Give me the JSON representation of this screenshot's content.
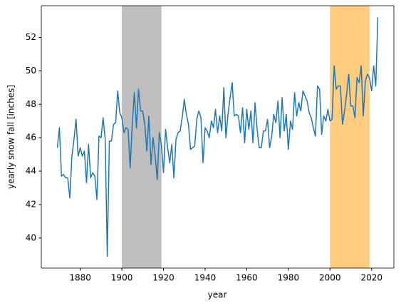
{
  "chart_data": {
    "type": "line",
    "xlabel": "year",
    "ylabel": "yearly snow fall [inches]",
    "x": [
      1869,
      1870,
      1871,
      1872,
      1873,
      1874,
      1875,
      1876,
      1877,
      1878,
      1879,
      1880,
      1881,
      1882,
      1883,
      1884,
      1885,
      1886,
      1887,
      1888,
      1889,
      1890,
      1891,
      1892,
      1893,
      1894,
      1895,
      1896,
      1897,
      1898,
      1899,
      1900,
      1901,
      1902,
      1903,
      1904,
      1905,
      1906,
      1907,
      1908,
      1909,
      1910,
      1911,
      1912,
      1913,
      1914,
      1915,
      1916,
      1917,
      1918,
      1919,
      1920,
      1921,
      1922,
      1923,
      1924,
      1925,
      1926,
      1927,
      1928,
      1929,
      1930,
      1931,
      1932,
      1933,
      1934,
      1935,
      1936,
      1937,
      1938,
      1939,
      1940,
      1941,
      1942,
      1943,
      1944,
      1945,
      1946,
      1947,
      1948,
      1949,
      1950,
      1951,
      1952,
      1953,
      1954,
      1955,
      1956,
      1957,
      1958,
      1959,
      1960,
      1961,
      1962,
      1963,
      1964,
      1965,
      1966,
      1967,
      1968,
      1969,
      1970,
      1971,
      1972,
      1973,
      1974,
      1975,
      1976,
      1977,
      1978,
      1979,
      1980,
      1981,
      1982,
      1983,
      1984,
      1985,
      1986,
      1987,
      1988,
      1989,
      1990,
      1991,
      1992,
      1993,
      1994,
      1995,
      1996,
      1997,
      1998,
      1999,
      2000,
      2001,
      2002,
      2003,
      2004,
      2005,
      2006,
      2007,
      2008,
      2009,
      2010,
      2011,
      2012,
      2013,
      2014,
      2015,
      2016,
      2017,
      2018,
      2019,
      2020,
      2021,
      2022,
      2023
    ],
    "series": [
      {
        "color": "#1f77b4",
        "values": [
          45.4,
          46.6,
          43.7,
          43.8,
          43.6,
          43.6,
          42.4,
          44.9,
          45.9,
          47.1,
          44.9,
          45.4,
          44.9,
          45.2,
          43.3,
          45.6,
          43.6,
          43.9,
          43.7,
          42.3,
          46.1,
          46.0,
          47.2,
          45.9,
          38.9,
          45.8,
          45.8,
          46.8,
          46.9,
          48.8,
          47.5,
          47.2,
          46.3,
          46.6,
          46.5,
          44.2,
          46.8,
          48.7,
          46.6,
          48.9,
          47.6,
          47.6,
          46.8,
          45.2,
          47.3,
          44.4,
          46.0,
          44.9,
          43.5,
          46.3,
          45.6,
          43.9,
          46.5,
          45.4,
          44.5,
          45.6,
          43.6,
          45.9,
          46.3,
          46.4,
          47.2,
          48.3,
          47.4,
          46.8,
          45.3,
          45.4,
          45.5,
          47.1,
          47.6,
          47.2,
          44.5,
          46.6,
          46.4,
          46.0,
          47.0,
          46.6,
          47.7,
          46.3,
          47.3,
          46.4,
          49.0,
          46.0,
          47.4,
          48.4,
          49.3,
          47.3,
          47.4,
          47.3,
          46.3,
          47.8,
          45.7,
          47.7,
          46.5,
          47.6,
          45.7,
          48.1,
          46.5,
          45.4,
          45.4,
          46.4,
          46.4,
          47.1,
          45.4,
          46.1,
          47.4,
          46.9,
          48.2,
          46.0,
          48.4,
          46.4,
          47.4,
          45.3,
          47.0,
          46.5,
          48.7,
          47.3,
          48.1,
          47.6,
          48.8,
          48.5,
          48.2,
          47.5,
          47.2,
          46.6,
          46.1,
          49.1,
          48.9,
          46.2,
          47.3,
          47.0,
          47.7,
          47.0,
          47.1,
          50.3,
          48.9,
          49.1,
          49.1,
          46.8,
          47.6,
          48.6,
          49.8,
          47.9,
          47.9,
          47.2,
          49.6,
          49.3,
          50.3,
          47.3,
          49.4,
          49.8,
          49.6,
          48.8,
          50.3,
          49.1,
          53.2
        ]
      }
    ],
    "spans": [
      {
        "start": 1900,
        "end": 1919,
        "color": "#bfbfbf"
      },
      {
        "start": 2000,
        "end": 2019,
        "color": "#ffcc80"
      }
    ],
    "xlim": [
      1861.3,
      2030.7
    ],
    "xticks": [
      1880,
      1900,
      1920,
      1940,
      1960,
      1980,
      2000,
      2020
    ],
    "ylim": [
      38.2,
      53.9
    ],
    "yticks": [
      40,
      42,
      44,
      46,
      48,
      50,
      52
    ],
    "grid": false
  }
}
